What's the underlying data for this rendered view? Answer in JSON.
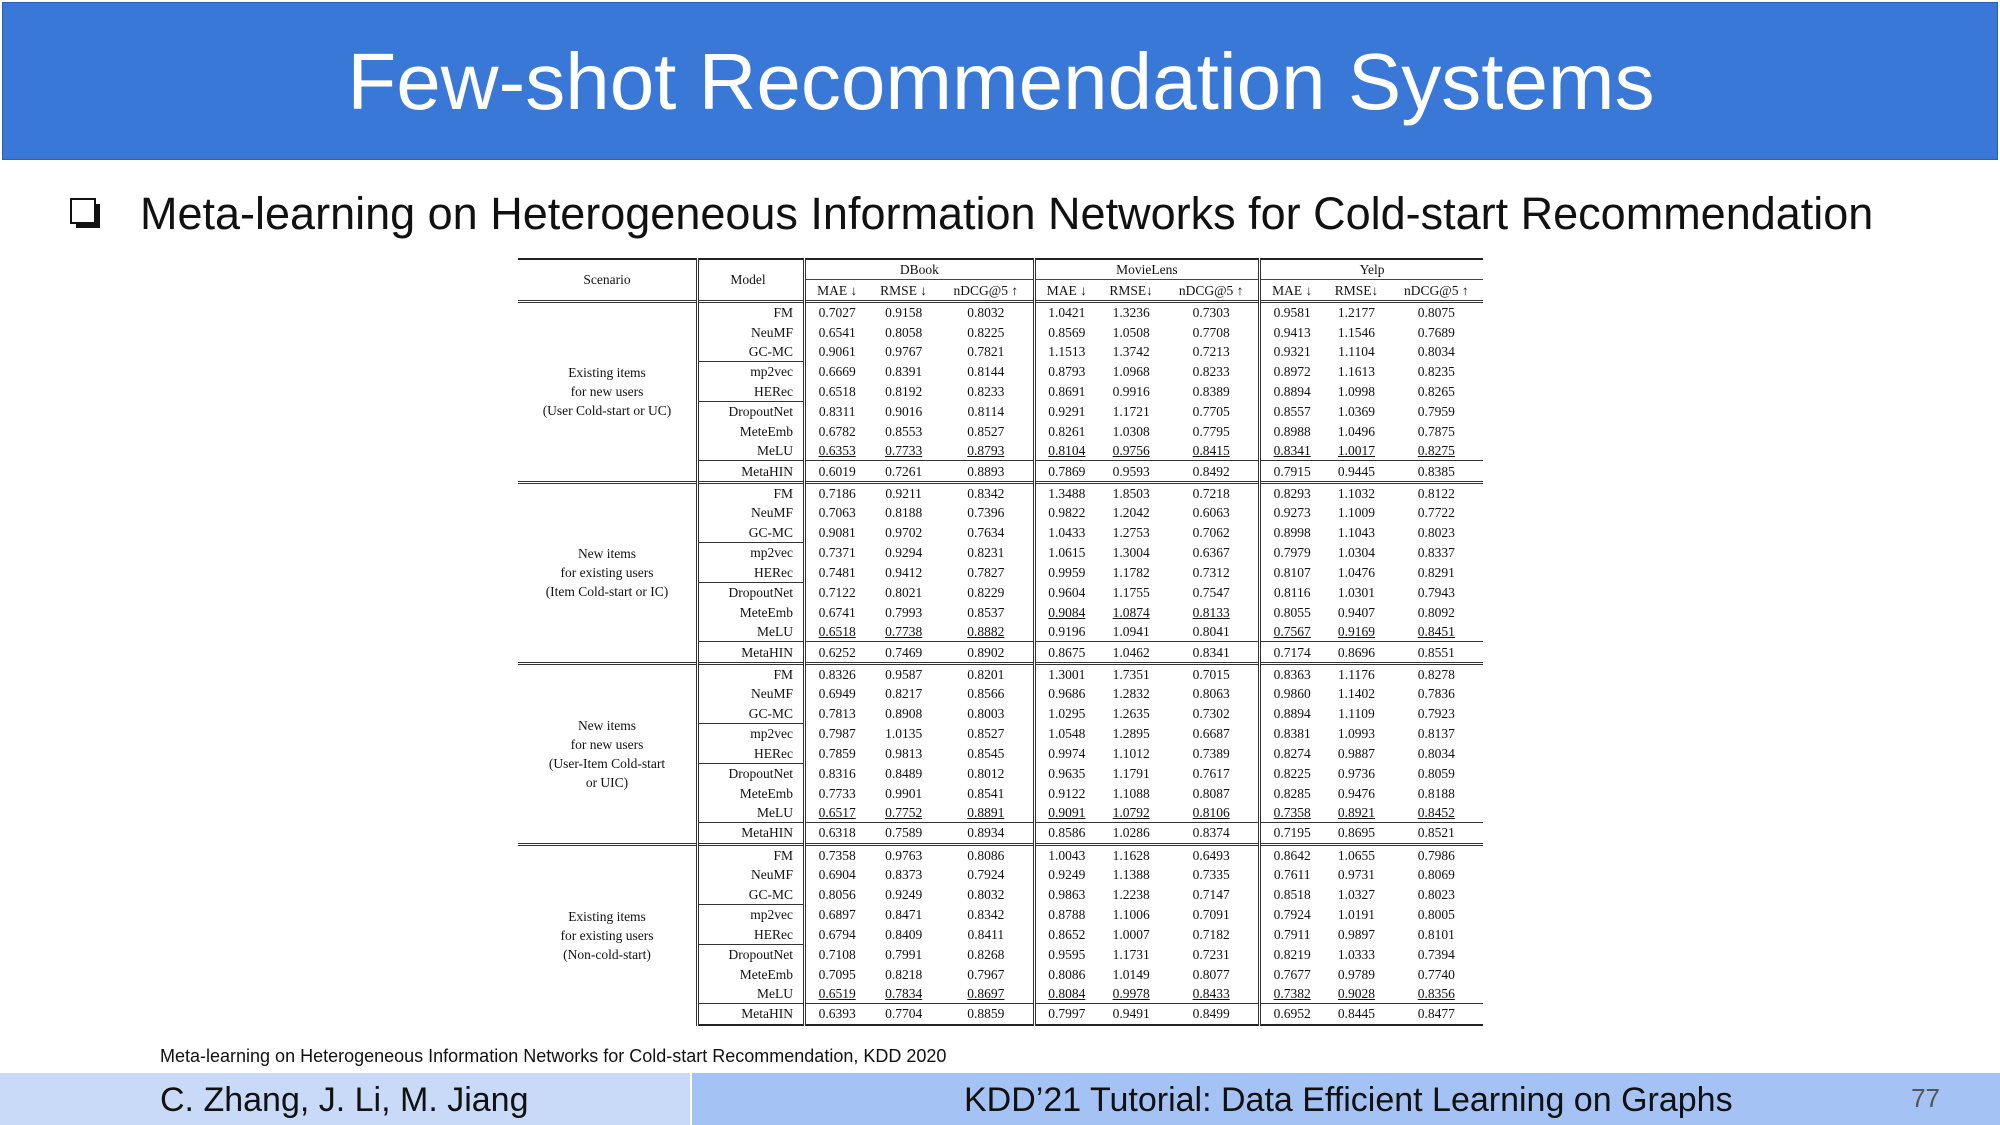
{
  "slide": {
    "title": "Few-shot Recommendation Systems",
    "bullet": "Meta-learning on Heterogeneous Information Networks for Cold-start Recommendation",
    "citation": "Meta-learning on Heterogeneous Information Networks for Cold-start Recommendation, KDD 2020",
    "footer_authors": "C. Zhang, J. Li, M. Jiang",
    "footer_tutorial": "KDD’21 Tutorial: Data Efficient Learning on Graphs",
    "page_number": "77"
  },
  "colors": {
    "banner": "#3a78d8",
    "footer_left": "#c9daf8",
    "footer_right": "#a4c2f4"
  },
  "table": {
    "header_scenario": "Scenario",
    "header_model": "Model",
    "datasets": [
      "DBook",
      "MovieLens",
      "Yelp"
    ],
    "metrics": [
      [
        "MAE ↓",
        "RMSE ↓",
        "nDCG@5 ↑"
      ],
      [
        "MAE ↓",
        "RMSE↓",
        "nDCG@5 ↑"
      ],
      [
        "MAE ↓",
        "RMSE↓",
        "nDCG@5 ↑"
      ]
    ],
    "blocks": [
      {
        "scenario": [
          "Existing items",
          "for new users",
          "(User Cold-start or UC)"
        ],
        "rows": [
          {
            "model": "FM",
            "v": [
              "0.7027",
              "0.9158",
              "0.8032",
              "1.0421",
              "1.3236",
              "0.7303",
              "0.9581",
              "1.2177",
              "0.8075"
            ]
          },
          {
            "model": "NeuMF",
            "v": [
              "0.6541",
              "0.8058",
              "0.8225",
              "0.8569",
              "1.0508",
              "0.7708",
              "0.9413",
              "1.1546",
              "0.7689"
            ]
          },
          {
            "model": "GC-MC",
            "v": [
              "0.9061",
              "0.9767",
              "0.7821",
              "1.1513",
              "1.3742",
              "0.7213",
              "0.9321",
              "1.1104",
              "0.8034"
            ]
          },
          {
            "model": "mp2vec",
            "v": [
              "0.6669",
              "0.8391",
              "0.8144",
              "0.8793",
              "1.0968",
              "0.8233",
              "0.8972",
              "1.1613",
              "0.8235"
            ]
          },
          {
            "model": "HERec",
            "v": [
              "0.6518",
              "0.8192",
              "0.8233",
              "0.8691",
              "0.9916",
              "0.8389",
              "0.8894",
              "1.0998",
              "0.8265"
            ]
          },
          {
            "model": "DropoutNet",
            "v": [
              "0.8311",
              "0.9016",
              "0.8114",
              "0.9291",
              "1.1721",
              "0.7705",
              "0.8557",
              "1.0369",
              "0.7959"
            ]
          },
          {
            "model": "MeteEmb",
            "v": [
              "0.6782",
              "0.8553",
              "0.8527",
              "0.8261",
              "1.0308",
              "0.7795",
              "0.8988",
              "1.0496",
              "0.7875"
            ]
          },
          {
            "model": "MeLU",
            "v": [
              "0.6353",
              "0.7733",
              "0.8793",
              "0.8104",
              "0.9756",
              "0.8415",
              "0.8341",
              "1.0017",
              "0.8275"
            ]
          },
          {
            "model": "MetaHIN",
            "v": [
              "0.6019",
              "0.7261",
              "0.8893",
              "0.7869",
              "0.9593",
              "0.8492",
              "0.7915",
              "0.9445",
              "0.8385"
            ]
          }
        ]
      },
      {
        "scenario": [
          "New items",
          "for existing users",
          "(Item Cold-start or IC)"
        ],
        "rows": [
          {
            "model": "FM",
            "v": [
              "0.7186",
              "0.9211",
              "0.8342",
              "1.3488",
              "1.8503",
              "0.7218",
              "0.8293",
              "1.1032",
              "0.8122"
            ]
          },
          {
            "model": "NeuMF",
            "v": [
              "0.7063",
              "0.8188",
              "0.7396",
              "0.9822",
              "1.2042",
              "0.6063",
              "0.9273",
              "1.1009",
              "0.7722"
            ]
          },
          {
            "model": "GC-MC",
            "v": [
              "0.9081",
              "0.9702",
              "0.7634",
              "1.0433",
              "1.2753",
              "0.7062",
              "0.8998",
              "1.1043",
              "0.8023"
            ]
          },
          {
            "model": "mp2vec",
            "v": [
              "0.7371",
              "0.9294",
              "0.8231",
              "1.0615",
              "1.3004",
              "0.6367",
              "0.7979",
              "1.0304",
              "0.8337"
            ]
          },
          {
            "model": "HERec",
            "v": [
              "0.7481",
              "0.9412",
              "0.7827",
              "0.9959",
              "1.1782",
              "0.7312",
              "0.8107",
              "1.0476",
              "0.8291"
            ]
          },
          {
            "model": "DropoutNet",
            "v": [
              "0.7122",
              "0.8021",
              "0.8229",
              "0.9604",
              "1.1755",
              "0.7547",
              "0.8116",
              "1.0301",
              "0.7943"
            ]
          },
          {
            "model": "MeteEmb",
            "v": [
              "0.6741",
              "0.7993",
              "0.8537",
              "0.9084",
              "1.0874",
              "0.8133",
              "0.8055",
              "0.9407",
              "0.8092"
            ]
          },
          {
            "model": "MeLU",
            "v": [
              "0.6518",
              "0.7738",
              "0.8882",
              "0.9196",
              "1.0941",
              "0.8041",
              "0.7567",
              "0.9169",
              "0.8451"
            ]
          },
          {
            "model": "MetaHIN",
            "v": [
              "0.6252",
              "0.7469",
              "0.8902",
              "0.8675",
              "1.0462",
              "0.8341",
              "0.7174",
              "0.8696",
              "0.8551"
            ]
          }
        ]
      },
      {
        "scenario": [
          "New items",
          "for new users",
          "(User-Item Cold-start",
          "or UIC)"
        ],
        "rows": [
          {
            "model": "FM",
            "v": [
              "0.8326",
              "0.9587",
              "0.8201",
              "1.3001",
              "1.7351",
              "0.7015",
              "0.8363",
              "1.1176",
              "0.8278"
            ]
          },
          {
            "model": "NeuMF",
            "v": [
              "0.6949",
              "0.8217",
              "0.8566",
              "0.9686",
              "1.2832",
              "0.8063",
              "0.9860",
              "1.1402",
              "0.7836"
            ]
          },
          {
            "model": "GC-MC",
            "v": [
              "0.7813",
              "0.8908",
              "0.8003",
              "1.0295",
              "1.2635",
              "0.7302",
              "0.8894",
              "1.1109",
              "0.7923"
            ]
          },
          {
            "model": "mp2vec",
            "v": [
              "0.7987",
              "1.0135",
              "0.8527",
              "1.0548",
              "1.2895",
              "0.6687",
              "0.8381",
              "1.0993",
              "0.8137"
            ]
          },
          {
            "model": "HERec",
            "v": [
              "0.7859",
              "0.9813",
              "0.8545",
              "0.9974",
              "1.1012",
              "0.7389",
              "0.8274",
              "0.9887",
              "0.8034"
            ]
          },
          {
            "model": "DropoutNet",
            "v": [
              "0.8316",
              "0.8489",
              "0.8012",
              "0.9635",
              "1.1791",
              "0.7617",
              "0.8225",
              "0.9736",
              "0.8059"
            ]
          },
          {
            "model": "MeteEmb",
            "v": [
              "0.7733",
              "0.9901",
              "0.8541",
              "0.9122",
              "1.1088",
              "0.8087",
              "0.8285",
              "0.9476",
              "0.8188"
            ]
          },
          {
            "model": "MeLU",
            "v": [
              "0.6517",
              "0.7752",
              "0.8891",
              "0.9091",
              "1.0792",
              "0.8106",
              "0.7358",
              "0.8921",
              "0.8452"
            ]
          },
          {
            "model": "MetaHIN",
            "v": [
              "0.6318",
              "0.7589",
              "0.8934",
              "0.8586",
              "1.0286",
              "0.8374",
              "0.7195",
              "0.8695",
              "0.8521"
            ]
          }
        ]
      },
      {
        "scenario": [
          "Existing items",
          "for existing users",
          "(Non-cold-start)"
        ],
        "rows": [
          {
            "model": "FM",
            "v": [
              "0.7358",
              "0.9763",
              "0.8086",
              "1.0043",
              "1.1628",
              "0.6493",
              "0.8642",
              "1.0655",
              "0.7986"
            ]
          },
          {
            "model": "NeuMF",
            "v": [
              "0.6904",
              "0.8373",
              "0.7924",
              "0.9249",
              "1.1388",
              "0.7335",
              "0.7611",
              "0.9731",
              "0.8069"
            ]
          },
          {
            "model": "GC-MC",
            "v": [
              "0.8056",
              "0.9249",
              "0.8032",
              "0.9863",
              "1.2238",
              "0.7147",
              "0.8518",
              "1.0327",
              "0.8023"
            ]
          },
          {
            "model": "mp2vec",
            "v": [
              "0.6897",
              "0.8471",
              "0.8342",
              "0.8788",
              "1.1006",
              "0.7091",
              "0.7924",
              "1.0191",
              "0.8005"
            ]
          },
          {
            "model": "HERec",
            "v": [
              "0.6794",
              "0.8409",
              "0.8411",
              "0.8652",
              "1.0007",
              "0.7182",
              "0.7911",
              "0.9897",
              "0.8101"
            ]
          },
          {
            "model": "DropoutNet",
            "v": [
              "0.7108",
              "0.7991",
              "0.8268",
              "0.9595",
              "1.1731",
              "0.7231",
              "0.8219",
              "1.0333",
              "0.7394"
            ]
          },
          {
            "model": "MeteEmb",
            "v": [
              "0.7095",
              "0.8218",
              "0.7967",
              "0.8086",
              "1.0149",
              "0.8077",
              "0.7677",
              "0.9789",
              "0.7740"
            ]
          },
          {
            "model": "MeLU",
            "v": [
              "0.6519",
              "0.7834",
              "0.8697",
              "0.8084",
              "0.9978",
              "0.8433",
              "0.7382",
              "0.9028",
              "0.8356"
            ]
          },
          {
            "model": "MetaHIN",
            "v": [
              "0.6393",
              "0.7704",
              "0.8859",
              "0.7997",
              "0.9491",
              "0.8499",
              "0.6952",
              "0.8445",
              "0.8477"
            ]
          }
        ]
      }
    ]
  }
}
